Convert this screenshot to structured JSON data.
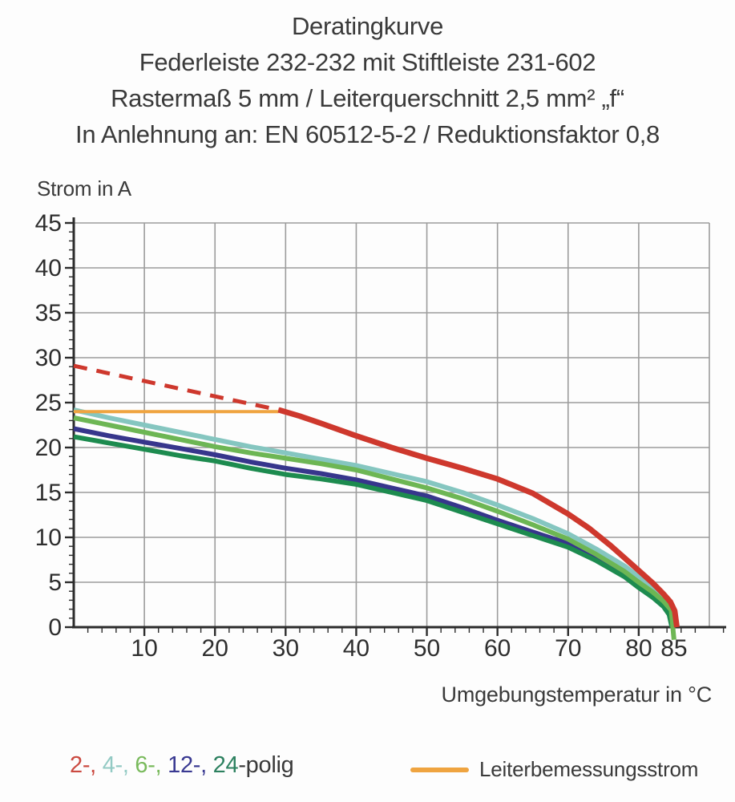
{
  "title": {
    "line1": "Deratingkurve",
    "line2": "Federleiste 232-232 mit Stiftleiste 231-602",
    "line3": "Rastermaß 5 mm / Leiterquerschnitt 2,5 mm² „f“",
    "line4": "In Anlehnung an: EN 60512-5-2 / Reduktionsfaktor 0,8"
  },
  "chart_data": {
    "type": "line",
    "title": "Deratingkurve",
    "ylabel": "Strom in A",
    "xlabel": "Umgebungstemperatur in °C",
    "xlim": [
      0,
      90
    ],
    "ylim": [
      0,
      45
    ],
    "grid": true,
    "x_gridlines": [
      10,
      20,
      30,
      40,
      50,
      60,
      70,
      80,
      90
    ],
    "y_gridlines": [
      5,
      10,
      15,
      20,
      25,
      30,
      35,
      40,
      45
    ],
    "x_major_ticks": [
      10,
      20,
      30,
      40,
      50,
      60,
      70,
      80,
      85
    ],
    "x_minor_step": 2,
    "y_major_ticks": [
      0,
      5,
      10,
      15,
      20,
      25,
      30,
      35,
      40,
      45
    ],
    "y_minor_step": 1,
    "colors": {
      "axis": "#2c2c2c",
      "grid": "#9c9c9c",
      "tick_text": "#2e2e2e",
      "red": "#ce382d",
      "orange": "#efa440",
      "cyan": "#85c6c0",
      "green6": "#6db654",
      "navy": "#37368c",
      "green24": "#1d8b4f"
    },
    "series": [
      {
        "id": "2-polig-gestrichelt",
        "name": "2-polig (oberhalb Leiterbemessungsstrom, gestrichelt)",
        "color": "#ce382d",
        "style": "dashed",
        "width": 5,
        "points": [
          [
            0,
            29.1
          ],
          [
            10,
            27.4
          ],
          [
            20,
            25.7
          ],
          [
            29,
            24.2
          ]
        ]
      },
      {
        "id": "4-polig",
        "name": "4-polig",
        "color": "#85c6c0",
        "style": "solid",
        "width": 6,
        "points": [
          [
            0,
            24.2
          ],
          [
            5,
            23.3
          ],
          [
            10,
            22.5
          ],
          [
            15,
            21.7
          ],
          [
            20,
            20.9
          ],
          [
            25,
            20.1
          ],
          [
            30,
            19.4
          ],
          [
            35,
            18.7
          ],
          [
            40,
            18.0
          ],
          [
            45,
            17.1
          ],
          [
            50,
            16.2
          ],
          [
            55,
            15.0
          ],
          [
            60,
            13.6
          ],
          [
            65,
            12.1
          ],
          [
            70,
            10.4
          ],
          [
            74,
            8.7
          ],
          [
            78,
            6.8
          ],
          [
            80,
            5.6
          ],
          [
            82,
            4.4
          ],
          [
            83.5,
            3.4
          ],
          [
            84.5,
            2.4
          ],
          [
            84.9,
            1.4
          ],
          [
            85,
            0
          ]
        ]
      },
      {
        "id": "leiterbemessungsstrom",
        "name": "Leiterbemessungsstrom",
        "color": "#efa440",
        "style": "solid",
        "width": 4,
        "points": [
          [
            0,
            24
          ],
          [
            29,
            24
          ]
        ]
      },
      {
        "id": "12-polig",
        "name": "12-polig",
        "color": "#37368c",
        "style": "solid",
        "width": 6,
        "points": [
          [
            0,
            22.1
          ],
          [
            5,
            21.3
          ],
          [
            10,
            20.6
          ],
          [
            15,
            19.9
          ],
          [
            20,
            19.2
          ],
          [
            25,
            18.4
          ],
          [
            30,
            17.7
          ],
          [
            35,
            17.1
          ],
          [
            40,
            16.4
          ],
          [
            45,
            15.5
          ],
          [
            50,
            14.6
          ],
          [
            55,
            13.3
          ],
          [
            60,
            11.9
          ],
          [
            65,
            10.6
          ],
          [
            70,
            9.3
          ],
          [
            74,
            7.7
          ],
          [
            78,
            5.9
          ],
          [
            80,
            4.7
          ],
          [
            82,
            3.6
          ],
          [
            83.5,
            2.6
          ],
          [
            84.4,
            1.6
          ],
          [
            84.8,
            0
          ]
        ]
      },
      {
        "id": "24-polig",
        "name": "24-polig",
        "color": "#1d8b4f",
        "style": "solid",
        "width": 6,
        "points": [
          [
            0,
            21.2
          ],
          [
            5,
            20.5
          ],
          [
            10,
            19.8
          ],
          [
            15,
            19.1
          ],
          [
            20,
            18.5
          ],
          [
            25,
            17.7
          ],
          [
            30,
            17.0
          ],
          [
            35,
            16.5
          ],
          [
            40,
            15.9
          ],
          [
            45,
            15.0
          ],
          [
            50,
            14.1
          ],
          [
            55,
            12.8
          ],
          [
            60,
            11.5
          ],
          [
            65,
            10.2
          ],
          [
            70,
            8.9
          ],
          [
            74,
            7.4
          ],
          [
            78,
            5.6
          ],
          [
            80,
            4.4
          ],
          [
            82,
            3.3
          ],
          [
            83.5,
            2.3
          ],
          [
            84.3,
            1.4
          ],
          [
            84.7,
            0
          ]
        ]
      },
      {
        "id": "6-polig",
        "name": "6-polig",
        "color": "#6db654",
        "style": "solid",
        "width": 6,
        "points": [
          [
            0,
            23.3
          ],
          [
            5,
            22.5
          ],
          [
            10,
            21.7
          ],
          [
            15,
            20.9
          ],
          [
            20,
            20.1
          ],
          [
            25,
            19.4
          ],
          [
            30,
            18.8
          ],
          [
            35,
            18.2
          ],
          [
            40,
            17.5
          ],
          [
            45,
            16.5
          ],
          [
            50,
            15.5
          ],
          [
            55,
            14.3
          ],
          [
            60,
            12.9
          ],
          [
            65,
            11.4
          ],
          [
            70,
            9.8
          ],
          [
            74,
            8.1
          ],
          [
            78,
            6.2
          ],
          [
            80,
            5.0
          ],
          [
            82,
            3.9
          ],
          [
            83.5,
            2.9
          ],
          [
            84.6,
            1.9
          ],
          [
            85,
            -1.4
          ]
        ]
      },
      {
        "id": "2-polig",
        "name": "2-polig",
        "color": "#ce382d",
        "style": "solid",
        "width": 7,
        "points": [
          [
            29,
            24.2
          ],
          [
            32,
            23.5
          ],
          [
            35,
            22.7
          ],
          [
            40,
            21.3
          ],
          [
            45,
            20.0
          ],
          [
            50,
            18.8
          ],
          [
            55,
            17.7
          ],
          [
            60,
            16.5
          ],
          [
            65,
            14.9
          ],
          [
            70,
            12.6
          ],
          [
            73,
            11.0
          ],
          [
            76,
            9.1
          ],
          [
            78,
            7.7
          ],
          [
            80,
            6.3
          ],
          [
            82,
            4.9
          ],
          [
            83.5,
            3.7
          ],
          [
            84.5,
            2.8
          ],
          [
            85.1,
            1.8
          ],
          [
            85.4,
            0
          ]
        ]
      }
    ]
  },
  "legend": {
    "poles": [
      {
        "name": "2",
        "text": "2-, ",
        "color": "#cb4a41"
      },
      {
        "name": "4",
        "text": "4-, ",
        "color": "#93cac4"
      },
      {
        "name": "6",
        "text": "6-, ",
        "color": "#79ba5c"
      },
      {
        "name": "12",
        "text": "12-, ",
        "color": "#3a3a92"
      },
      {
        "name": "24",
        "text": "24",
        "color": "#2d8160"
      }
    ],
    "suffix": "-polig",
    "suffix_color": "#3a3a3a",
    "rated": {
      "label": "Leiterbemessungsstrom",
      "color": "#efa440"
    }
  }
}
